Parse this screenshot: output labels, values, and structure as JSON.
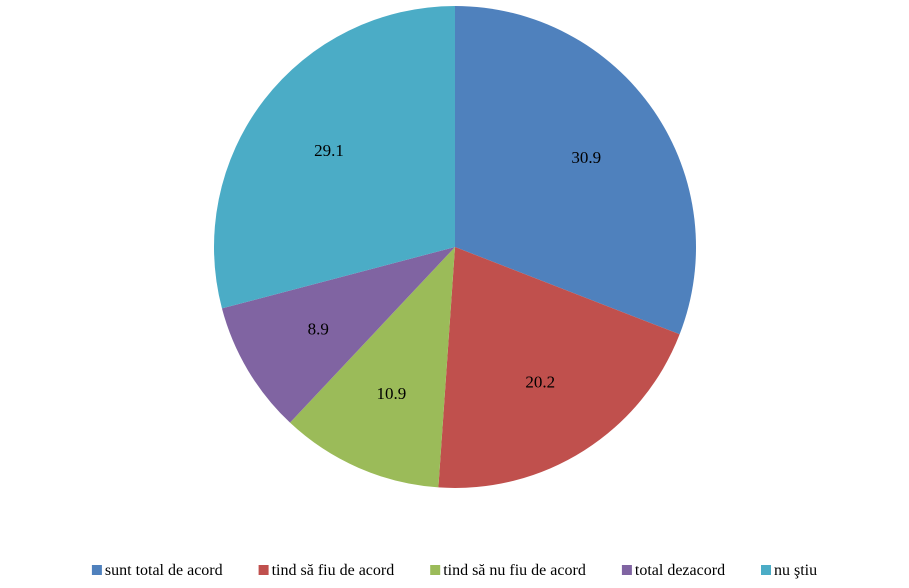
{
  "chart_data": {
    "type": "pie",
    "title": "",
    "start_angle_deg": 0,
    "direction": "clockwise",
    "legend_position": "bottom",
    "slices": [
      {
        "label": "sunt total de acord",
        "value": 30.9,
        "value_label": "30.9",
        "color": "#4F81BD"
      },
      {
        "label": "tind să fiu de acord",
        "value": 20.2,
        "value_label": "20.2",
        "color": "#C0504D"
      },
      {
        "label": "tind să nu fiu de acord",
        "value": 10.9,
        "value_label": "10.9",
        "color": "#9BBB59"
      },
      {
        "label": "total dezacord",
        "value": 8.9,
        "value_label": "8.9",
        "color": "#8064A2"
      },
      {
        "label": "nu ştiu",
        "value": 29.1,
        "value_label": "29.1",
        "color": "#4BACC6"
      }
    ]
  }
}
